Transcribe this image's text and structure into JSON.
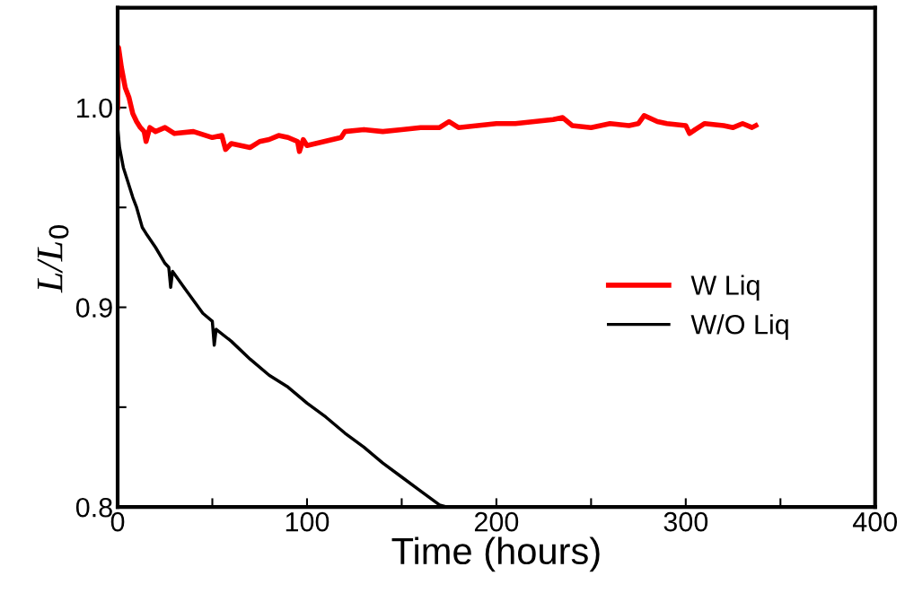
{
  "chart_data": {
    "type": "line",
    "xlabel": "Time (hours)",
    "ylabel": "L/L$_{0}$",
    "xlim": [
      0,
      400
    ],
    "ylim": [
      0.8,
      1.05
    ],
    "xticks": [
      0,
      {
        "value": 50,
        "label": null
      },
      100,
      {
        "value": 150,
        "label": null
      },
      200,
      {
        "value": 250,
        "label": null
      },
      300,
      {
        "value": 350,
        "label": null
      },
      400
    ],
    "yticks": [
      0.8,
      {
        "value": 0.85,
        "label": null
      },
      0.9,
      {
        "value": 0.95,
        "label": null
      },
      {
        "value": 1.0,
        "label": "1.0"
      }
    ],
    "grid": false,
    "legend": "right",
    "marker": "none",
    "line_style": "solid",
    "series": [
      {
        "name": "W Liq",
        "color": "#ff0000",
        "x": [
          0,
          0.5,
          2,
          4,
          6,
          8,
          10,
          12,
          14,
          15,
          17,
          20,
          25,
          30,
          40,
          50,
          55,
          57,
          60,
          65,
          70,
          75,
          80,
          85,
          90,
          95,
          96,
          98,
          100,
          118,
          120,
          130,
          140,
          150,
          160,
          170,
          175,
          180,
          190,
          200,
          210,
          220,
          230,
          235,
          240,
          250,
          260,
          270,
          275,
          278,
          285,
          290,
          300,
          302,
          305,
          310,
          320,
          325,
          330,
          335,
          337
        ],
        "values": [
          1.0,
          1.03,
          1.02,
          1.01,
          1.005,
          0.997,
          0.993,
          0.99,
          0.988,
          0.983,
          0.99,
          0.988,
          0.99,
          0.987,
          0.988,
          0.985,
          0.986,
          0.979,
          0.982,
          0.981,
          0.98,
          0.983,
          0.984,
          0.986,
          0.985,
          0.983,
          0.978,
          0.984,
          0.981,
          0.985,
          0.988,
          0.989,
          0.988,
          0.989,
          0.99,
          0.99,
          0.993,
          0.99,
          0.991,
          0.992,
          0.992,
          0.993,
          0.994,
          0.995,
          0.991,
          0.99,
          0.992,
          0.991,
          0.992,
          0.996,
          0.993,
          0.992,
          0.991,
          0.987,
          0.989,
          0.992,
          0.991,
          0.99,
          0.992,
          0.99,
          0.991
        ]
      },
      {
        "name": "W/O Liq",
        "color": "#000000",
        "x": [
          0,
          1,
          3,
          5,
          8,
          10,
          13,
          15,
          20,
          25,
          27,
          28,
          29,
          35,
          45,
          50,
          51,
          52,
          60,
          70,
          80,
          90,
          100,
          110,
          120,
          130,
          140,
          150,
          160,
          170,
          174
        ],
        "values": [
          0.99,
          0.98,
          0.97,
          0.964,
          0.955,
          0.95,
          0.94,
          0.937,
          0.93,
          0.922,
          0.92,
          0.91,
          0.918,
          0.91,
          0.897,
          0.893,
          0.881,
          0.889,
          0.883,
          0.874,
          0.866,
          0.86,
          0.852,
          0.845,
          0.837,
          0.83,
          0.822,
          0.815,
          0.808,
          0.801,
          0.8
        ]
      }
    ]
  }
}
